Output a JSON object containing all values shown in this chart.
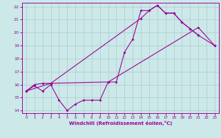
{
  "xlabel": "Windchill (Refroidissement éolien,°C)",
  "bg_color": "#cce8e8",
  "line_color": "#990099",
  "grid_color": "#aacccc",
  "xlim": [
    -0.5,
    23.5
  ],
  "ylim": [
    13.8,
    22.3
  ],
  "xticks": [
    0,
    1,
    2,
    3,
    4,
    5,
    6,
    7,
    8,
    9,
    10,
    11,
    12,
    13,
    14,
    15,
    16,
    17,
    18,
    19,
    20,
    21,
    22,
    23
  ],
  "yticks": [
    14,
    15,
    16,
    17,
    18,
    19,
    20,
    21,
    22
  ],
  "line1_x": [
    0,
    1,
    2,
    3,
    4,
    5,
    6,
    7,
    8,
    9,
    10,
    11,
    12,
    13,
    14,
    15,
    16,
    17,
    18,
    19,
    20,
    21
  ],
  "line1_y": [
    15.5,
    15.9,
    15.5,
    16.0,
    14.8,
    14.0,
    14.5,
    14.8,
    14.8,
    14.8,
    16.2,
    16.2,
    18.5,
    19.5,
    21.7,
    21.7,
    22.1,
    21.5,
    21.5,
    20.8,
    20.3,
    19.8
  ],
  "line2_x": [
    0,
    1,
    2,
    3,
    10,
    21,
    23
  ],
  "line2_y": [
    15.5,
    16.0,
    16.1,
    16.1,
    16.2,
    20.4,
    19.0
  ],
  "line3_x": [
    0,
    3,
    14,
    15,
    16,
    17,
    18,
    19,
    20,
    21,
    23
  ],
  "line3_y": [
    15.5,
    16.1,
    21.1,
    21.7,
    22.1,
    21.5,
    21.5,
    20.8,
    20.3,
    19.8,
    19.0
  ]
}
